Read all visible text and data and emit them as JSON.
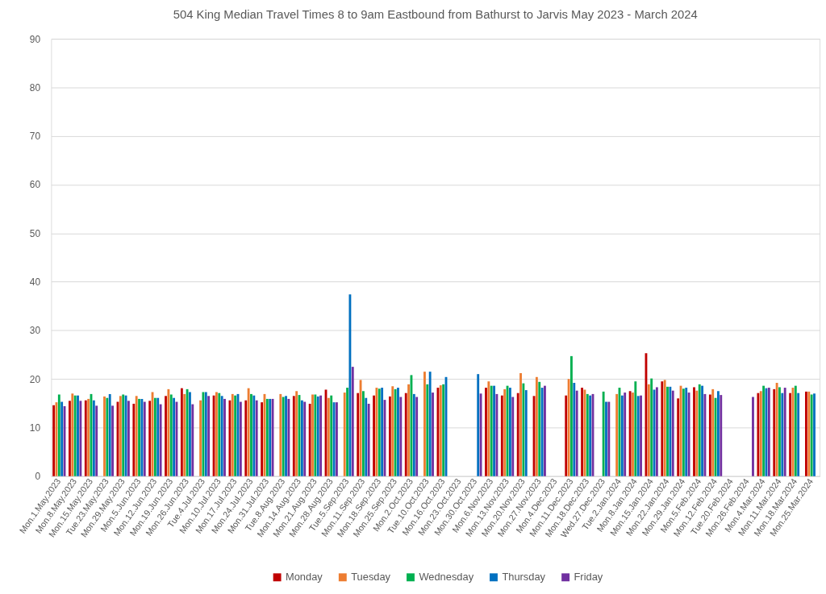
{
  "chart_data": {
    "type": "bar",
    "title": "504 King Median Travel Times 8 to 9am Eastbound from Bathurst to Jarvis May 2023 - March 2024",
    "categories": [
      "Mon.1.May.2023",
      "Mon.8.May.2023",
      "Mon.15.May.2023",
      "Tue.23.May.2023",
      "Mon.29.May.2023",
      "Mon.5.Jun.2023",
      "Mon.12.Jun.2023",
      "Mon.19.Jun.2023",
      "Mon.26.Jun.2023",
      "Tue.4.Jul.2023",
      "Mon.10.Jul.2023",
      "Mon.17.Jul.2023",
      "Mon.24.Jul.2023",
      "Mon.31.Jul.2023",
      "Tue.8.Aug.2023",
      "Mon.14.Aug.2023",
      "Mon.21.Aug.2023",
      "Mon.28.Aug.2023",
      "Tue.5.Sep.2023",
      "Mon.11.Sep.2023",
      "Mon.18.Sep.2023",
      "Mon.25.Sep.2023",
      "Mon.2.Oct.2023",
      "Tue.10.Oct.2023",
      "Mon.16.Oct.2023",
      "Mon.23.Oct.2023",
      "Mon.30.Oct.2023",
      "Mon.6.Nov.2023",
      "Mon.13.Nov.2023",
      "Mon.20.Nov.2023",
      "Mon.27.Nov.2023",
      "Mon.4.Dec.2023",
      "Mon.11.Dec.2023",
      "Mon.18.Dec.2023",
      "Wed.27.Dec.2023",
      "Tue.2.Jan.2024",
      "Mon.8.Jan.2024",
      "Mon.15.Jan.2024",
      "Mon.22.Jan.2024",
      "Mon.29.Jan.2024",
      "Mon.5.Feb.2024",
      "Mon.12.Feb.2024",
      "Tue.20.Feb.2024",
      "Mon.26.Feb.2024",
      "Mon.4.Mar.2024",
      "Mon.11.Mar.2024",
      "Mon.18.Mar.2024",
      "Mon.25.Mar.2024"
    ],
    "series": [
      {
        "name": "Monday",
        "color": "#c00000",
        "values": [
          14.6,
          15.5,
          15.6,
          null,
          15.3,
          14.9,
          15.5,
          16.5,
          18.1,
          null,
          16.6,
          15.6,
          15.6,
          15.2,
          null,
          16.5,
          14.9,
          17.8,
          null,
          17.1,
          16.6,
          16.4,
          17.1,
          null,
          18.2,
          null,
          null,
          18.2,
          16.6,
          17.1,
          16.5,
          null,
          16.6,
          18.2,
          null,
          null,
          17.5,
          25.3,
          19.5,
          16.0,
          18.3,
          16.8,
          null,
          null,
          17.1,
          17.9,
          17.1,
          17.4
        ]
      },
      {
        "name": "Tuesday",
        "color": "#ed7d31",
        "values": [
          15.2,
          17.0,
          15.9,
          16.4,
          16.5,
          16.5,
          17.3,
          17.9,
          16.9,
          15.6,
          17.3,
          16.9,
          18.1,
          16.9,
          16.9,
          17.5,
          16.8,
          16.1,
          17.2,
          19.8,
          18.2,
          18.5,
          18.9,
          21.5,
          18.7,
          null,
          null,
          19.5,
          17.9,
          21.2,
          20.4,
          null,
          20.0,
          17.8,
          null,
          16.9,
          17.2,
          18.9,
          19.8,
          18.6,
          17.6,
          17.9,
          null,
          null,
          17.5,
          19.2,
          18.2,
          17.4
        ]
      },
      {
        "name": "Wednesday",
        "color": "#00b050",
        "values": [
          16.8,
          16.6,
          16.9,
          16.1,
          16.8,
          15.9,
          16.1,
          16.8,
          17.9,
          17.3,
          17.1,
          16.6,
          16.9,
          15.9,
          16.3,
          16.7,
          16.8,
          16.6,
          18.2,
          17.5,
          18.0,
          17.9,
          20.8,
          18.9,
          18.9,
          null,
          null,
          18.6,
          18.6,
          19.1,
          19.4,
          null,
          24.7,
          16.9,
          17.4,
          18.2,
          19.5,
          20.1,
          18.4,
          18.0,
          18.9,
          16.1,
          null,
          null,
          18.6,
          18.3,
          18.6,
          16.8
        ]
      },
      {
        "name": "Thursday",
        "color": "#0070c0",
        "values": [
          15.3,
          16.6,
          15.6,
          16.9,
          16.6,
          15.9,
          16.1,
          16.1,
          17.3,
          17.3,
          16.5,
          16.9,
          16.6,
          15.9,
          16.5,
          15.6,
          16.4,
          15.2,
          37.4,
          16.1,
          18.2,
          18.2,
          16.9,
          21.5,
          20.4,
          null,
          21.0,
          18.6,
          18.2,
          17.7,
          18.2,
          null,
          19.2,
          16.6,
          15.3,
          16.6,
          16.5,
          17.8,
          18.4,
          18.2,
          18.6,
          17.5,
          null,
          null,
          18.1,
          17.1,
          17.1,
          17.0
        ]
      },
      {
        "name": "Friday",
        "color": "#7030a0",
        "values": [
          14.4,
          15.5,
          14.5,
          14.5,
          15.5,
          15.3,
          14.8,
          15.3,
          14.8,
          16.5,
          15.9,
          15.3,
          15.6,
          15.9,
          15.9,
          15.3,
          16.6,
          15.2,
          22.5,
          14.9,
          15.7,
          16.3,
          16.3,
          17.2,
          null,
          null,
          17.0,
          16.9,
          16.3,
          null,
          18.6,
          null,
          17.6,
          16.9,
          15.3,
          17.2,
          16.6,
          18.3,
          17.6,
          17.2,
          16.9,
          16.7,
          null,
          16.3,
          18.2,
          18.2,
          null,
          null
        ]
      }
    ],
    "ylim": [
      0,
      90
    ],
    "yticks": [
      0,
      10,
      20,
      30,
      40,
      50,
      60,
      70,
      80,
      90
    ],
    "grid": "y",
    "legend": "bottom"
  }
}
